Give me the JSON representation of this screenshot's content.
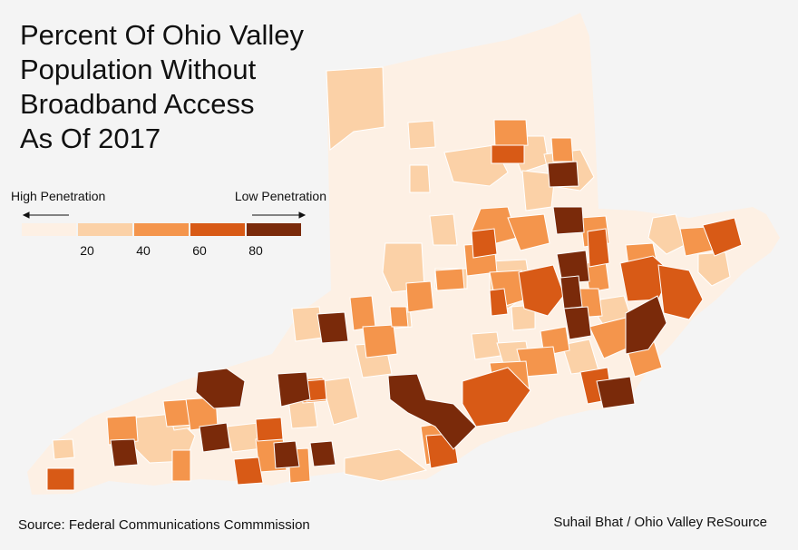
{
  "title_lines": [
    "Percent Of Ohio Valley",
    "Population Without",
    "Broadband Access",
    "As Of 2017"
  ],
  "legend": {
    "high_label": "High Penetration",
    "low_label": "Low Penetration",
    "ticks": [
      "20",
      "40",
      "60",
      "80"
    ],
    "bins": [
      {
        "range": "0-20",
        "color": "#fdf0e4"
      },
      {
        "range": "20-40",
        "color": "#fbd1a7"
      },
      {
        "range": "40-60",
        "color": "#f4954c"
      },
      {
        "range": "60-80",
        "color": "#d85a16"
      },
      {
        "range": "80-100",
        "color": "#7a2a0a"
      }
    ]
  },
  "colors": {
    "background": "#f4f4f4",
    "region": "#fdf0e4",
    "county_border": "#ffffff"
  },
  "source": "Source: Federal Communications Commmission",
  "credit": "Suhail Bhat / Ohio Valley ReSource"
}
